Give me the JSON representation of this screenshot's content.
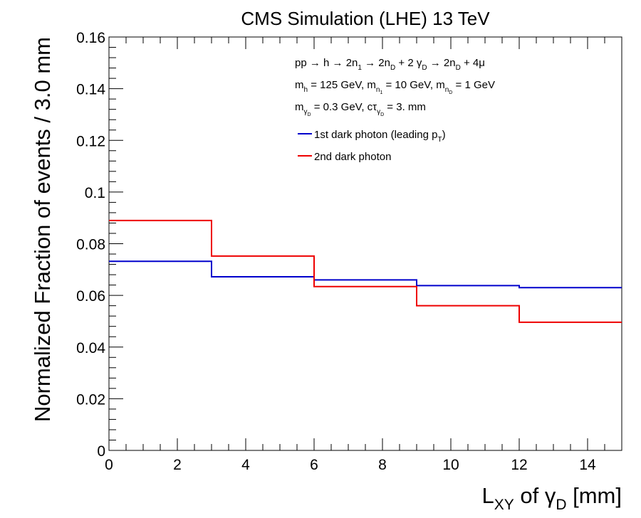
{
  "chart_data": {
    "type": "line",
    "title": "CMS Simulation (LHE) 13 TeV",
    "xlabel": {
      "main": "L",
      "sub": "XY",
      "mid": " of ",
      "greek": "γ",
      "greek_sub": "D",
      "unit": " [mm]"
    },
    "ylabel": "Normalized Fraction of events / 3.0 mm",
    "xlim": [
      0,
      15
    ],
    "ylim": [
      0,
      0.16
    ],
    "xticks": [
      "0",
      "2",
      "4",
      "6",
      "8",
      "10",
      "12",
      "14"
    ],
    "yticks": [
      "0",
      "0.02",
      "0.04",
      "0.06",
      "0.08",
      "0.1",
      "0.12",
      "0.14",
      "0.16"
    ],
    "grid": false,
    "bin_edges": [
      0,
      3,
      6,
      9,
      12,
      15
    ],
    "series": [
      {
        "name": "1st dark photon (leading p",
        "name_sub": "T",
        "name_tail": ")",
        "color": "#0000cc",
        "values": [
          0.0732,
          0.0672,
          0.066,
          0.0638,
          0.063
        ]
      },
      {
        "name": "2nd dark photon",
        "color": "#ee0000",
        "values": [
          0.089,
          0.0752,
          0.0634,
          0.056,
          0.0496
        ]
      }
    ],
    "annotations": [
      [
        {
          "t": "pp → h → 2n"
        },
        {
          "t": "1",
          "s": "sub"
        },
        {
          "t": " → 2n"
        },
        {
          "t": "D",
          "s": "sub"
        },
        {
          "t": " + 2 γ"
        },
        {
          "t": "D",
          "s": "sub"
        },
        {
          "t": " → 2n"
        },
        {
          "t": "D",
          "s": "sub"
        },
        {
          "t": " + 4μ"
        }
      ],
      [
        {
          "t": "m"
        },
        {
          "t": "h",
          "s": "sub"
        },
        {
          "t": " = 125 GeV, m"
        },
        {
          "t": "n",
          "s": "sub"
        },
        {
          "t": "1",
          "s": "subsub"
        },
        {
          "t": " = 10 GeV, m"
        },
        {
          "t": "n",
          "s": "sub"
        },
        {
          "t": "D",
          "s": "subsub"
        },
        {
          "t": " = 1 GeV"
        }
      ],
      [
        {
          "t": "m"
        },
        {
          "t": "γ",
          "s": "sub"
        },
        {
          "t": "D",
          "s": "subsub"
        },
        {
          "t": " = 0.3 GeV, cτ"
        },
        {
          "t": "γ",
          "s": "sub"
        },
        {
          "t": "D",
          "s": "subsub"
        },
        {
          "t": " = 3. mm"
        }
      ]
    ]
  }
}
